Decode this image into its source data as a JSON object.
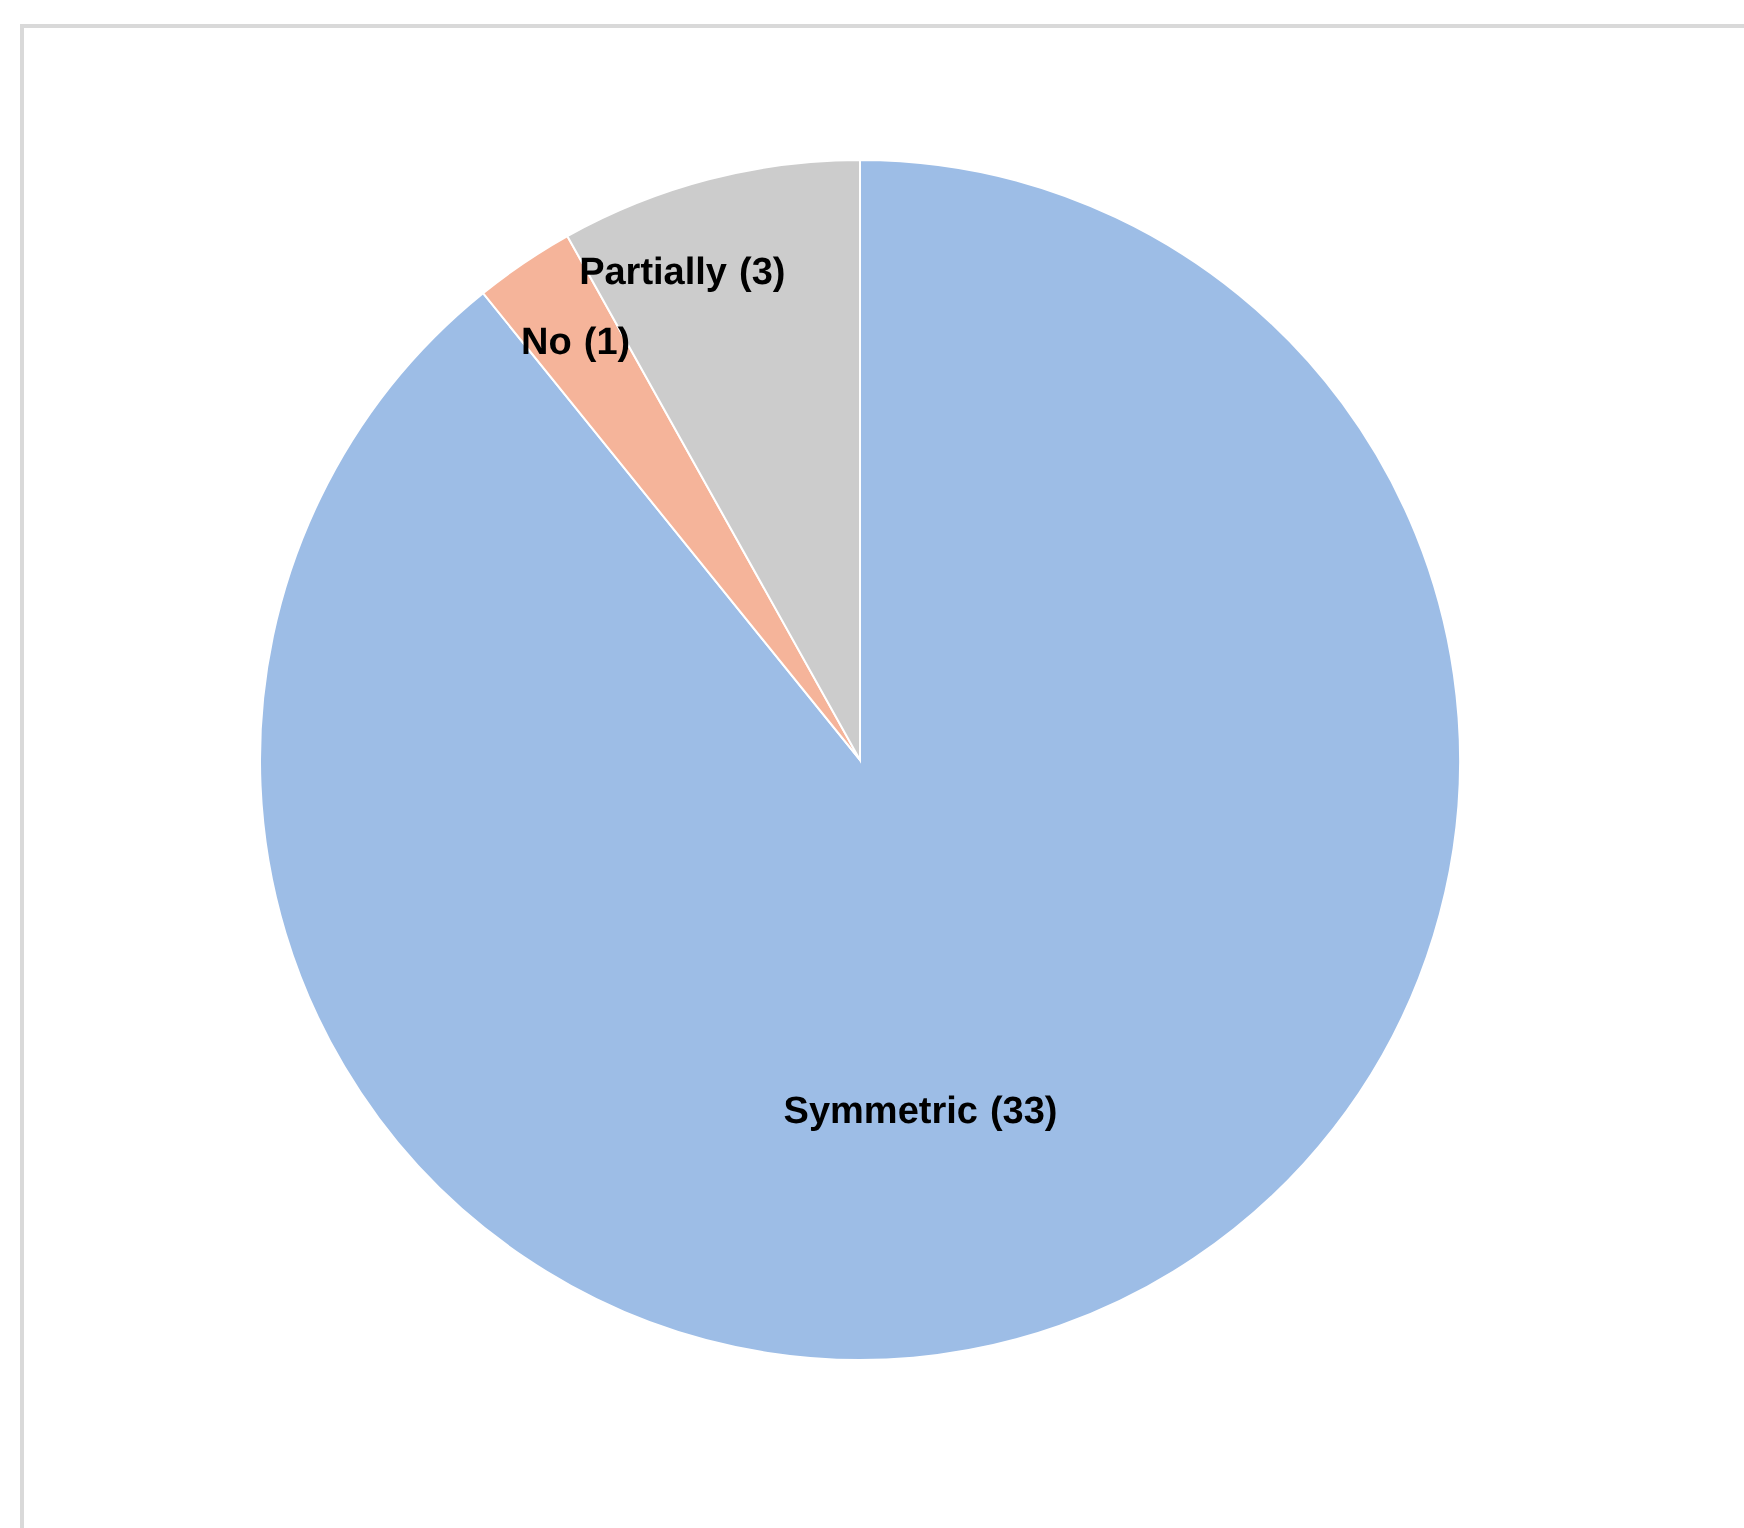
{
  "chart_data": {
    "type": "pie",
    "categories": [
      "Symmetric",
      "No",
      "Partially"
    ],
    "values": [
      33,
      1,
      3
    ],
    "colors": [
      "#9dbde6",
      "#f5b49a",
      "#cccccc"
    ],
    "value_labels": [
      "(33)",
      "(1)",
      "(3)"
    ]
  }
}
